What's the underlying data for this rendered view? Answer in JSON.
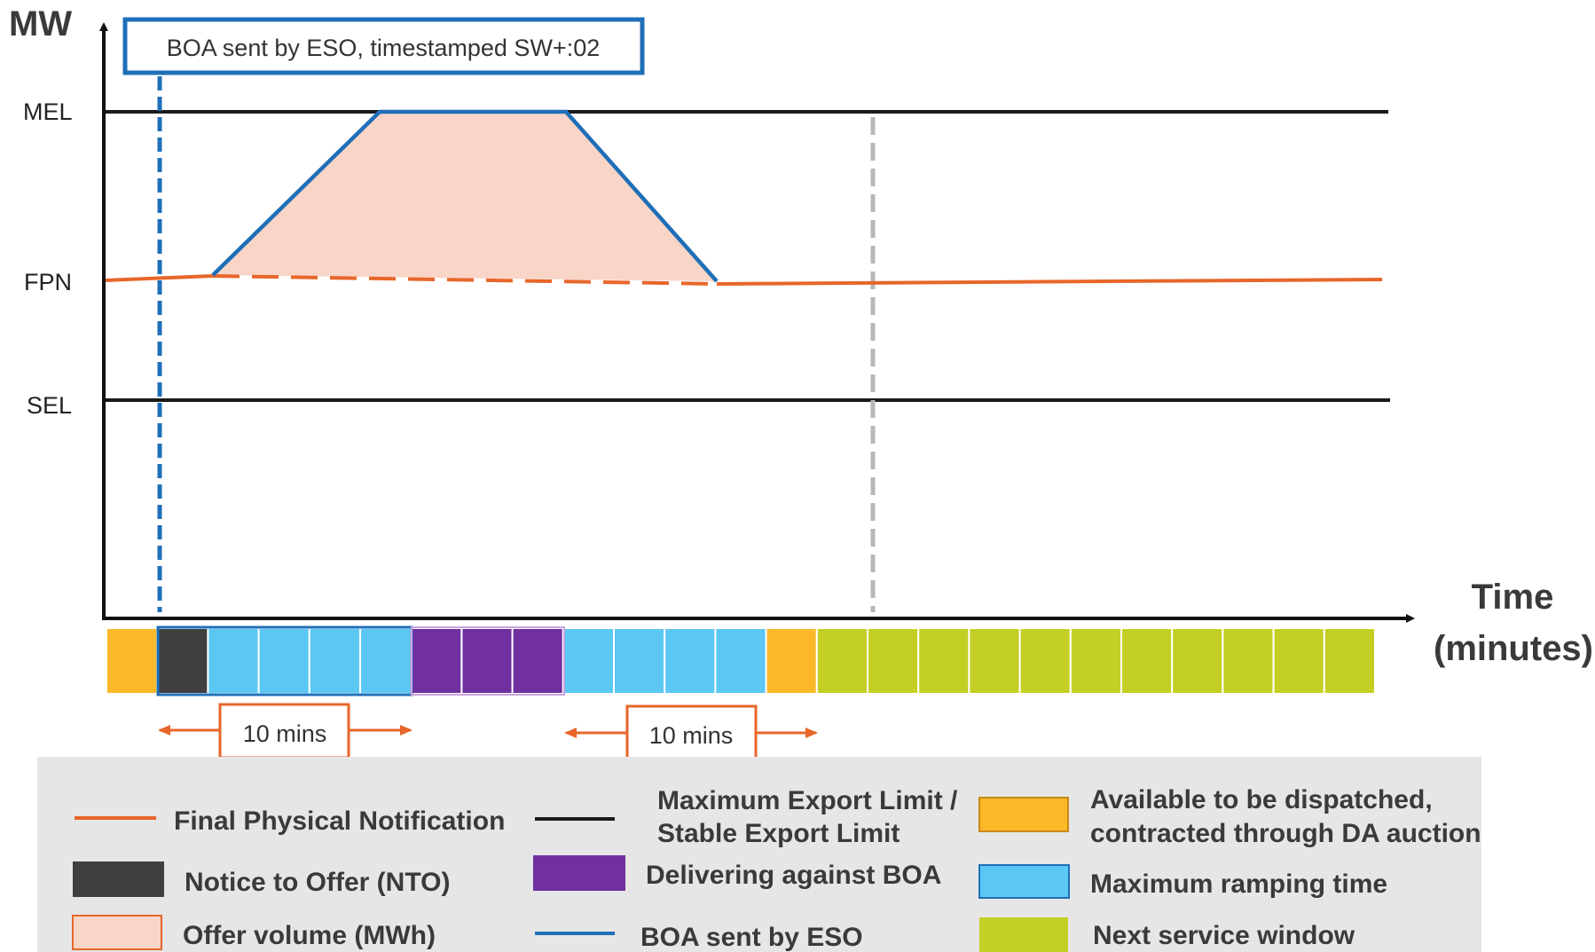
{
  "axes": {
    "y_title": "MW",
    "x_title_line1": "Time",
    "x_title_line2": "(minutes)"
  },
  "levels": {
    "mel": "MEL",
    "fpn": "FPN",
    "sel": "SEL"
  },
  "callout": {
    "text": "BOA sent by ESO, timestamped SW+:02"
  },
  "durations": {
    "first": "10 mins",
    "second": "10 mins"
  },
  "timeline": {
    "cells": [
      "available",
      "nto",
      "ramp",
      "ramp",
      "ramp",
      "ramp",
      "boa",
      "boa",
      "boa",
      "ramp",
      "ramp",
      "ramp",
      "ramp",
      "available",
      "next",
      "next",
      "next",
      "next",
      "next",
      "next",
      "next",
      "next",
      "next",
      "next",
      "next"
    ]
  },
  "colors": {
    "fpn": "#e8662a",
    "limit": "#1a1a1a",
    "boa": "#1f6fb8",
    "offer_fill": "#f9d5c8",
    "available": "#fbb829",
    "nto": "#404040",
    "ramp": "#5bc8f4",
    "boa_delivery": "#7030a0",
    "next": "#c3cf25",
    "grey_dash": "#b7b7b7"
  },
  "legend": {
    "fpn": "Final Physical Notification",
    "nto": "Notice to Offer (NTO)",
    "offer": "Offer volume (MWh)",
    "limit_line1": "Maximum Export Limit /",
    "limit_line2": "Stable Export Limit",
    "delivering": "Delivering against BOA",
    "boa_sent": "BOA sent by ESO",
    "available_line1": "Available to be dispatched,",
    "available_line2": "contracted through DA auction",
    "ramping": "Maximum ramping time",
    "next_window": "Next service window"
  }
}
